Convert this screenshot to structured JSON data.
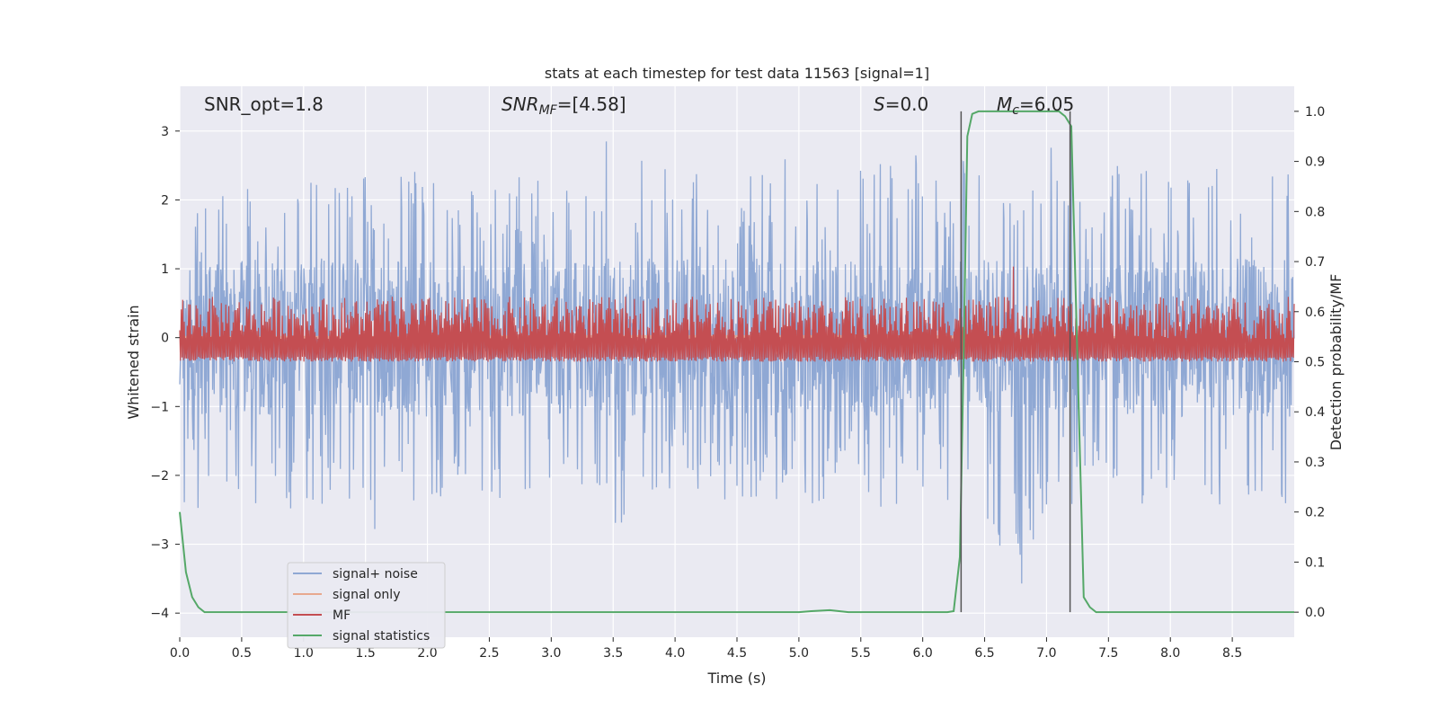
{
  "chart_data": {
    "type": "line",
    "title": "stats at each timestep for test data 11563 [signal=1]",
    "xlabel": "Time (s)",
    "ylabel": "Whitened strain",
    "y2label": "Detection probability/MF",
    "xlim": [
      0.0,
      9.0
    ],
    "ylim": [
      -4.35,
      3.65
    ],
    "y2lim": [
      -0.05,
      1.05
    ],
    "x_ticks": [
      "0.0",
      "0.5",
      "1.0",
      "1.5",
      "2.0",
      "2.5",
      "3.0",
      "3.5",
      "4.0",
      "4.5",
      "5.0",
      "5.5",
      "6.0",
      "6.5",
      "7.0",
      "7.5",
      "8.0",
      "8.5"
    ],
    "y_ticks": [
      "−4",
      "−3",
      "−2",
      "−1",
      "0",
      "1",
      "2",
      "3"
    ],
    "y2_ticks": [
      "0.0",
      "0.1",
      "0.2",
      "0.3",
      "0.4",
      "0.5",
      "0.6",
      "0.7",
      "0.8",
      "0.9",
      "1.0"
    ],
    "grid": true,
    "legend_placement": "lower-left",
    "annotations": {
      "snr_opt": "SNR_opt=1.8",
      "snr_mf_main": "SNR",
      "snr_mf_sub": "MF",
      "snr_mf_rest": "=[4.58]",
      "s_main": "S",
      "s_rest": "=0.0",
      "mc_main": "M",
      "mc_sub": "c",
      "mc_rest": "=6.05"
    },
    "vlines": [
      6.31,
      7.19
    ],
    "series": [
      {
        "name": "signal+ noise",
        "color": "#8fa8d4",
        "axis": "left",
        "envelope_x": [
          0.0,
          0.25,
          0.5,
          0.75,
          1.0,
          1.25,
          1.5,
          1.75,
          2.0,
          2.25,
          2.5,
          2.75,
          3.0,
          3.25,
          3.5,
          3.75,
          4.0,
          4.25,
          4.5,
          4.75,
          5.0,
          5.25,
          5.5,
          5.75,
          6.0,
          6.25,
          6.5,
          6.75,
          7.0,
          7.25,
          7.5,
          7.75,
          8.0,
          8.25,
          8.5,
          8.75,
          9.0
        ],
        "upper": [
          2.3,
          2.1,
          2.7,
          2.2,
          2.3,
          2.5,
          2.5,
          2.2,
          3.3,
          2.3,
          2.4,
          2.4,
          2.5,
          2.3,
          3.2,
          2.6,
          2.6,
          2.3,
          2.2,
          2.6,
          2.6,
          2.3,
          2.5,
          2.6,
          2.8,
          2.6,
          2.9,
          2.8,
          3.0,
          2.9,
          2.6,
          2.4,
          2.6,
          2.4,
          2.6,
          2.5,
          3.0
        ],
        "lower": [
          -2.7,
          -2.4,
          -2.3,
          -2.8,
          -2.4,
          -2.5,
          -2.9,
          -2.6,
          -2.4,
          -2.3,
          -2.4,
          -2.5,
          -2.6,
          -2.4,
          -2.9,
          -2.4,
          -2.3,
          -2.3,
          -2.4,
          -2.3,
          -2.6,
          -2.3,
          -2.4,
          -2.5,
          -2.4,
          -2.5,
          -2.5,
          -4.0,
          -2.5,
          -2.6,
          -2.4,
          -2.5,
          -2.4,
          -2.5,
          -2.6,
          -2.6,
          -2.5
        ]
      },
      {
        "name": "signal only",
        "color": "#e8a98f",
        "axis": "left",
        "x": [
          0.0,
          1.0,
          2.0,
          3.0,
          4.0,
          5.0,
          6.0,
          6.5,
          7.0,
          7.5,
          8.0,
          8.3,
          8.5,
          8.65
        ],
        "y": [
          0.0,
          0.0,
          0.0,
          0.01,
          0.01,
          0.01,
          0.01,
          0.0,
          0.02,
          0.0,
          -0.05,
          -0.1,
          -0.1,
          -0.15
        ]
      },
      {
        "name": "MF",
        "color": "#c44e52",
        "axis": "right",
        "x_range": [
          0.0,
          9.0
        ],
        "baseline": 0.5,
        "typical_peak": 0.63,
        "max_peak": 0.69,
        "max_peak_x": 6.73
      },
      {
        "name": "signal statistics",
        "color": "#55a868",
        "axis": "right",
        "x": [
          0.0,
          0.05,
          0.1,
          0.15,
          0.2,
          0.3,
          0.5,
          1.0,
          2.0,
          3.0,
          4.0,
          5.0,
          5.1,
          5.25,
          5.4,
          5.5,
          6.0,
          6.2,
          6.25,
          6.3,
          6.33,
          6.36,
          6.4,
          6.45,
          6.55,
          7.0,
          7.1,
          7.15,
          7.2,
          7.25,
          7.3,
          7.35,
          7.4,
          7.5,
          8.0,
          9.0
        ],
        "y": [
          0.2,
          0.08,
          0.03,
          0.01,
          0.0,
          0.0,
          0.0,
          0.0,
          0.0,
          0.0,
          0.0,
          0.0,
          0.002,
          0.004,
          0.0,
          0.0,
          0.0,
          0.0,
          0.002,
          0.11,
          0.5,
          0.95,
          0.995,
          1.0,
          1.0,
          1.0,
          1.0,
          0.99,
          0.97,
          0.5,
          0.03,
          0.01,
          0.0,
          0.0,
          0.0,
          0.0
        ]
      }
    ]
  }
}
